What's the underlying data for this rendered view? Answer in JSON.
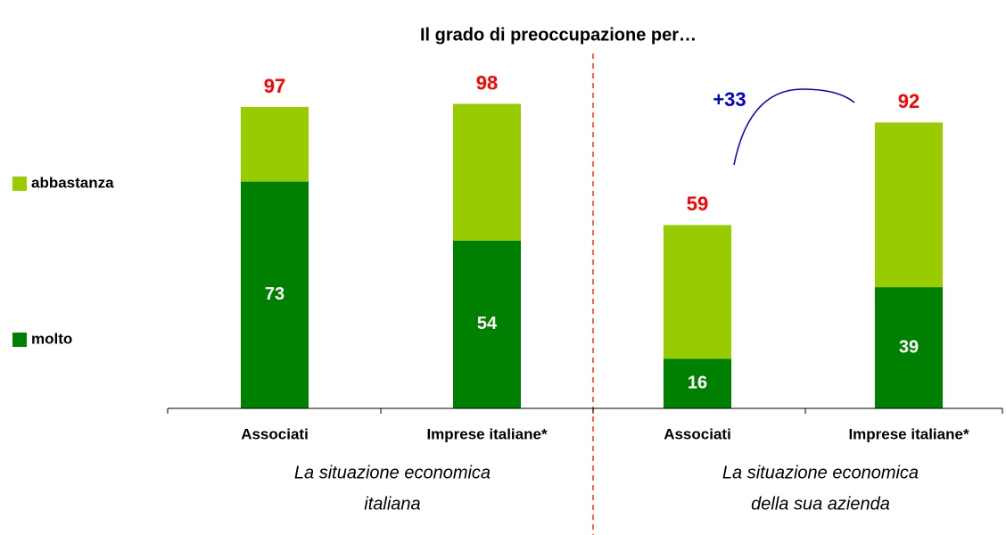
{
  "chart_data": {
    "type": "stacked_bar",
    "title": "Il grado di preoccupazione per…",
    "categories": [
      "Associati",
      "Imprese italiane*",
      "Associati",
      "Imprese italiane*"
    ],
    "series": [
      {
        "name": "molto",
        "color": "#008000",
        "values": [
          73,
          54,
          16,
          39
        ]
      },
      {
        "name": "abbastanza",
        "color": "#99cc00",
        "values": [
          24,
          44,
          43,
          53
        ]
      }
    ],
    "totals": [
      97,
      98,
      59,
      92
    ],
    "group_labels": [
      [
        "La situazione economica",
        "italiana"
      ],
      [
        "La situazione economica",
        "della sua azienda"
      ]
    ],
    "annotation": "+33",
    "ylim": [
      0,
      100
    ]
  }
}
